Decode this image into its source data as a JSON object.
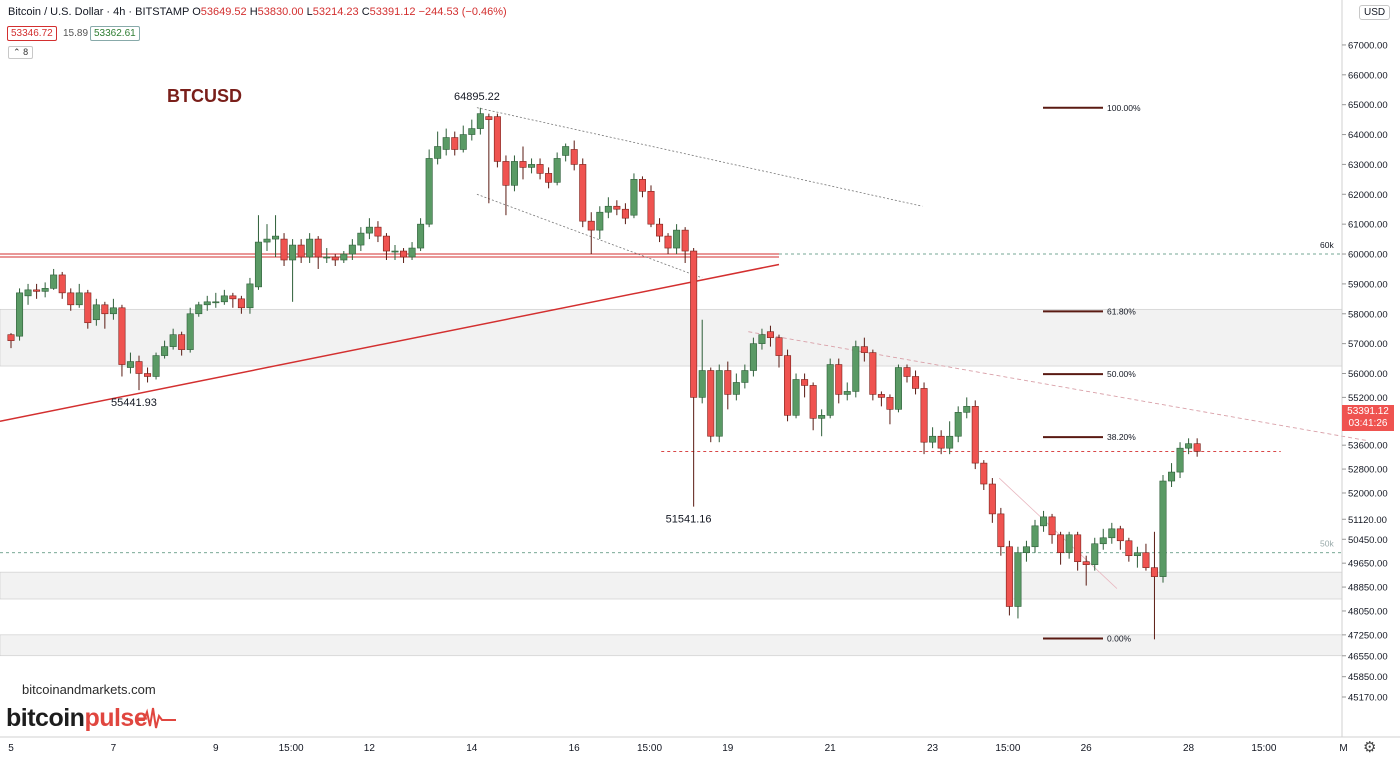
{
  "header": {
    "symbol": "Bitcoin / U.S. Dollar · 4h · BITSTAMP",
    "open_label": "O",
    "open": "53649.52",
    "high_label": "H",
    "high": "53830.00",
    "low_label": "L",
    "low": "53214.23",
    "close_label": "C",
    "close": "53391.12",
    "change": "−244.53 (−0.46%)",
    "bid": "53346.72",
    "spread": "15.89",
    "ask": "53362.61",
    "collapse_label": "8",
    "currency": "USD"
  },
  "icons": {
    "settings": "gear-icon",
    "collapse": "chevron-up-icon",
    "logo_pulse": "heartbeat-icon"
  },
  "watermark": {
    "site": "bitcoinandmarkets.com",
    "logo_part1": "bitcoin",
    "logo_part2": "pulse"
  },
  "colors": {
    "up": "#5a9a65",
    "down": "#ef5350",
    "support_line": "#d32f2f",
    "fib_lines": "#5a1a12",
    "zone_fill": "#f2f2f2",
    "brand_red": "#e0463f",
    "title_red": "#7a1f1a"
  },
  "chart_data": {
    "type": "candlestick",
    "title": "BTCUSD",
    "timeframe": "4h",
    "exchange": "BITSTAMP",
    "ylim": [
      44500,
      67500
    ],
    "y_ticks": [
      45170,
      45850,
      46550,
      47250,
      48050,
      48850,
      49650,
      50450,
      51120,
      52000,
      52800,
      53600,
      54400,
      55200,
      56000,
      57000,
      58000,
      59000,
      60000,
      61000,
      62000,
      63000,
      64000,
      65000,
      66000,
      67000
    ],
    "y_tick_labels": [
      "45170.00",
      "45850.00",
      "46550.00",
      "47250.00",
      "48050.00",
      "48850.00",
      "49650.00",
      "50450.00",
      "51120.00",
      "52000.00",
      "52800.00",
      "53600.00",
      "54400.00",
      "55200.00",
      "56000.00",
      "57000.00",
      "58000.00",
      "59000.00",
      "60000.00",
      "61000.00",
      "62000.00",
      "63000.00",
      "64000.00",
      "65000.00",
      "66000.00",
      "67000.00"
    ],
    "x_ticks": [
      5,
      7,
      9,
      10.5,
      12,
      14,
      16,
      17.5,
      19,
      21,
      23,
      24.5,
      26,
      28,
      29.5,
      31
    ],
    "x_tick_labels": [
      "5",
      "7",
      "9",
      "15:00",
      "12",
      "14",
      "16",
      "15:00",
      "19",
      "21",
      "23",
      "15:00",
      "26",
      "28",
      "15:00",
      "M"
    ],
    "last_price": "53391.12",
    "countdown": "03:41:26",
    "candles": [
      [
        5,
        57300,
        57100,
        56850,
        57350
      ],
      [
        5.167,
        57250,
        58700,
        57100,
        58850
      ],
      [
        5.333,
        58600,
        58800,
        58300,
        59000
      ],
      [
        5.5,
        58800,
        58750,
        58500,
        59000
      ],
      [
        5.667,
        58750,
        58850,
        58550,
        59050
      ],
      [
        5.833,
        58850,
        59300,
        58800,
        59500
      ],
      [
        6,
        59300,
        58700,
        58500,
        59400
      ],
      [
        6.167,
        58700,
        58300,
        58100,
        58850
      ],
      [
        6.333,
        58300,
        58700,
        58200,
        59000
      ],
      [
        6.5,
        58700,
        57700,
        57500,
        58800
      ],
      [
        6.667,
        57800,
        58300,
        57600,
        58500
      ],
      [
        6.833,
        58300,
        58000,
        57500,
        58400
      ],
      [
        7,
        58000,
        58200,
        57800,
        58500
      ],
      [
        7.167,
        58200,
        56300,
        55900,
        58300
      ],
      [
        7.333,
        56200,
        56400,
        56000,
        56700
      ],
      [
        7.5,
        56400,
        56000,
        55441.93,
        56600
      ],
      [
        7.667,
        56000,
        55900,
        55700,
        56200
      ],
      [
        7.833,
        55900,
        56600,
        55800,
        56700
      ],
      [
        8,
        56600,
        56900,
        56500,
        57100
      ],
      [
        8.167,
        56900,
        57300,
        56800,
        57500
      ],
      [
        8.333,
        57300,
        56800,
        56600,
        57400
      ],
      [
        8.5,
        56800,
        58000,
        56700,
        58200
      ],
      [
        8.667,
        58000,
        58300,
        57900,
        58400
      ],
      [
        8.833,
        58300,
        58400,
        58100,
        58600
      ],
      [
        9,
        58400,
        58400,
        58200,
        58700
      ],
      [
        9.167,
        58400,
        58600,
        58300,
        58800
      ],
      [
        9.333,
        58600,
        58500,
        58200,
        58700
      ],
      [
        9.5,
        58500,
        58200,
        58000,
        58600
      ],
      [
        9.667,
        58200,
        59000,
        58000,
        59200
      ],
      [
        9.833,
        58900,
        60400,
        58800,
        61300
      ],
      [
        10,
        60400,
        60500,
        60100,
        61000
      ],
      [
        10.167,
        60500,
        60600,
        59900,
        61300
      ],
      [
        10.333,
        60500,
        59800,
        59600,
        60700
      ],
      [
        10.5,
        59800,
        60300,
        58400,
        60500
      ],
      [
        10.667,
        60300,
        59900,
        59700,
        60500
      ],
      [
        10.833,
        59900,
        60500,
        59700,
        60700
      ],
      [
        11,
        60500,
        59900,
        59500,
        60600
      ],
      [
        11.167,
        59900,
        59900,
        59700,
        60200
      ],
      [
        11.333,
        59900,
        59800,
        59600,
        60000
      ],
      [
        11.5,
        59800,
        60000,
        59700,
        60100
      ],
      [
        11.667,
        60000,
        60300,
        59800,
        60500
      ],
      [
        11.833,
        60300,
        60700,
        60100,
        60900
      ],
      [
        12,
        60700,
        60900,
        60500,
        61200
      ],
      [
        12.167,
        60900,
        60600,
        60400,
        61100
      ],
      [
        12.333,
        60600,
        60100,
        59800,
        60700
      ],
      [
        12.5,
        60100,
        60100,
        59800,
        60300
      ],
      [
        12.667,
        60100,
        59900,
        59700,
        60200
      ],
      [
        12.833,
        59900,
        60200,
        59800,
        60400
      ],
      [
        13,
        60200,
        61000,
        60100,
        61200
      ],
      [
        13.167,
        61000,
        63200,
        60900,
        63500
      ],
      [
        13.333,
        63200,
        63600,
        63000,
        64100
      ],
      [
        13.5,
        63500,
        63900,
        63300,
        64200
      ],
      [
        13.667,
        63900,
        63500,
        63300,
        64100
      ],
      [
        13.833,
        63500,
        64000,
        63400,
        64300
      ],
      [
        14,
        64000,
        64200,
        63800,
        64500
      ],
      [
        14.167,
        64200,
        64700,
        64000,
        64895.22
      ],
      [
        14.333,
        64600,
        64500,
        61700,
        64700
      ],
      [
        14.5,
        64600,
        63100,
        62900,
        64700
      ],
      [
        14.667,
        63100,
        62300,
        61300,
        63300
      ],
      [
        14.833,
        62300,
        63100,
        62100,
        63300
      ],
      [
        15,
        63100,
        62900,
        62500,
        63600
      ],
      [
        15.167,
        62900,
        63000,
        62700,
        63200
      ],
      [
        15.333,
        63000,
        62700,
        62500,
        63200
      ],
      [
        15.5,
        62700,
        62400,
        62200,
        62900
      ],
      [
        15.667,
        62400,
        63200,
        62300,
        63400
      ],
      [
        15.833,
        63300,
        63600,
        63100,
        63700
      ],
      [
        16,
        63500,
        63000,
        62800,
        63800
      ],
      [
        16.167,
        63000,
        61100,
        60900,
        63200
      ],
      [
        16.333,
        61100,
        60800,
        60000,
        61400
      ],
      [
        16.5,
        60800,
        61400,
        60500,
        61600
      ],
      [
        16.667,
        61400,
        61600,
        61200,
        61900
      ],
      [
        16.833,
        61600,
        61500,
        61300,
        61800
      ],
      [
        17,
        61500,
        61200,
        61000,
        61700
      ],
      [
        17.167,
        61300,
        62500,
        61200,
        62700
      ],
      [
        17.333,
        62500,
        62100,
        61900,
        62600
      ],
      [
        17.5,
        62100,
        61000,
        60900,
        62300
      ],
      [
        17.667,
        61000,
        60600,
        60400,
        61200
      ],
      [
        17.833,
        60600,
        60200,
        60000,
        60700
      ],
      [
        18,
        60200,
        60800,
        60000,
        61000
      ],
      [
        18.167,
        60800,
        60100,
        59700,
        60900
      ],
      [
        18.333,
        60100,
        55200,
        51541.16,
        60200
      ],
      [
        18.5,
        55200,
        56100,
        55000,
        57800
      ],
      [
        18.667,
        56100,
        53900,
        53700,
        56200
      ],
      [
        18.833,
        53900,
        56100,
        53700,
        56300
      ],
      [
        19,
        56100,
        55300,
        54800,
        56400
      ],
      [
        19.167,
        55300,
        55700,
        55100,
        56000
      ],
      [
        19.333,
        55700,
        56100,
        55500,
        56300
      ],
      [
        19.5,
        56100,
        57000,
        55900,
        57200
      ],
      [
        19.667,
        57000,
        57300,
        56800,
        57500
      ],
      [
        19.833,
        57400,
        57200,
        56900,
        57600
      ],
      [
        20,
        57200,
        56600,
        56200,
        57300
      ],
      [
        20.167,
        56600,
        54600,
        54400,
        56800
      ],
      [
        20.333,
        54600,
        55800,
        54500,
        56000
      ],
      [
        20.5,
        55800,
        55600,
        55200,
        56000
      ],
      [
        20.667,
        55600,
        54500,
        54100,
        55700
      ],
      [
        20.833,
        54500,
        54600,
        53900,
        54800
      ],
      [
        21,
        54600,
        56300,
        54500,
        56500
      ],
      [
        21.167,
        56300,
        55300,
        55000,
        56500
      ],
      [
        21.333,
        55300,
        55400,
        55100,
        55700
      ],
      [
        21.5,
        55400,
        56900,
        55200,
        57100
      ],
      [
        21.667,
        56900,
        56700,
        56400,
        57200
      ],
      [
        21.833,
        56700,
        55300,
        55100,
        56800
      ],
      [
        22,
        55300,
        55200,
        54900,
        55400
      ],
      [
        22.167,
        55200,
        54800,
        54300,
        55300
      ],
      [
        22.333,
        54800,
        56200,
        54700,
        56300
      ],
      [
        22.5,
        56200,
        55900,
        55700,
        56300
      ],
      [
        22.667,
        55900,
        55500,
        55300,
        56100
      ],
      [
        22.833,
        55500,
        53700,
        53300,
        55700
      ],
      [
        23,
        53700,
        53900,
        53500,
        54200
      ],
      [
        23.167,
        53900,
        53500,
        53300,
        54100
      ],
      [
        23.333,
        53500,
        53900,
        53300,
        54400
      ],
      [
        23.5,
        53900,
        54700,
        53700,
        54900
      ],
      [
        23.667,
        54700,
        54900,
        54500,
        55200
      ],
      [
        23.833,
        54900,
        53000,
        52800,
        55100
      ],
      [
        24,
        53000,
        52300,
        52100,
        53100
      ],
      [
        24.167,
        52300,
        51300,
        51000,
        52500
      ],
      [
        24.333,
        51300,
        50200,
        49900,
        51500
      ],
      [
        24.5,
        50200,
        48200,
        47900,
        50400
      ],
      [
        24.667,
        48200,
        50000,
        47800,
        50200
      ],
      [
        24.833,
        50000,
        50200,
        49700,
        50400
      ],
      [
        25,
        50200,
        50900,
        50000,
        51100
      ],
      [
        25.167,
        50900,
        51200,
        50700,
        51400
      ],
      [
        25.333,
        51200,
        50600,
        50300,
        51300
      ],
      [
        25.5,
        50600,
        50000,
        49600,
        50700
      ],
      [
        25.667,
        50000,
        50600,
        49800,
        50700
      ],
      [
        25.833,
        50600,
        49700,
        49400,
        50700
      ],
      [
        26,
        49700,
        49600,
        48900,
        49900
      ],
      [
        26.167,
        49600,
        50300,
        49400,
        50500
      ],
      [
        26.333,
        50300,
        50500,
        50100,
        50800
      ],
      [
        26.5,
        50500,
        50800,
        50300,
        51000
      ],
      [
        26.667,
        50800,
        50400,
        50100,
        50900
      ],
      [
        26.833,
        50400,
        49900,
        49700,
        50500
      ],
      [
        27,
        49900,
        50000,
        49500,
        50200
      ],
      [
        27.167,
        50000,
        49500,
        49400,
        50300
      ],
      [
        27.333,
        49500,
        49200,
        47100,
        50700
      ],
      [
        27.5,
        49200,
        52400,
        49000,
        52600
      ],
      [
        27.667,
        52400,
        52700,
        52200,
        53000
      ],
      [
        27.833,
        52700,
        53500,
        52500,
        53700
      ],
      [
        28,
        53500,
        53650,
        53300,
        53830
      ],
      [
        28.167,
        53649.52,
        53391.12,
        53214.23,
        53830
      ]
    ],
    "annotations": [
      {
        "text": "64895.22",
        "x": 14.2,
        "y": 64895.22
      },
      {
        "text": "55441.93",
        "x": 7.5,
        "y": 55441.93
      },
      {
        "text": "51541.16",
        "x": 18.333,
        "y": 51541.16
      },
      {
        "text": "60k",
        "x": 31,
        "y": 60000
      },
      {
        "text": "50k",
        "x": 31,
        "y": 50000
      }
    ],
    "fib_levels": [
      {
        "label": "100.00%",
        "price": 64895.22
      },
      {
        "label": "61.80%",
        "price": 58080
      },
      {
        "label": "50.00%",
        "price": 55980
      },
      {
        "label": "38.20%",
        "price": 53870
      },
      {
        "label": "0.00%",
        "price": 47130
      }
    ],
    "support_zones": [
      [
        56250,
        58150
      ],
      [
        48450,
        49350
      ],
      [
        46550,
        47250
      ]
    ],
    "horizontal_lines": [
      {
        "price": 59950,
        "style": "double-red",
        "from": 0,
        "to": 20
      },
      {
        "price": 60000,
        "style": "dashed",
        "from": 20,
        "to": 31
      },
      {
        "price": 50000,
        "style": "dashed",
        "from": 0,
        "to": 31
      },
      {
        "price": 53391.12,
        "style": "dashed-red",
        "from": 17.7,
        "to": 29.8
      }
    ],
    "trendlines": [
      {
        "from": [
          0,
          54400
        ],
        "to": [
          20,
          59650
        ],
        "style": "solid-red"
      },
      {
        "from": [
          14.1,
          64900
        ],
        "to": [
          22.8,
          61600
        ],
        "style": "dotted"
      },
      {
        "from": [
          14.1,
          62000
        ],
        "to": [
          18.5,
          59200
        ],
        "style": "dotted"
      },
      {
        "from": [
          19.4,
          57400
        ],
        "to": [
          31.5,
          53750
        ],
        "style": "dashed-pink"
      },
      {
        "from": [
          24.3,
          52500
        ],
        "to": [
          26.6,
          48800
        ],
        "style": "thin-pink"
      }
    ]
  }
}
